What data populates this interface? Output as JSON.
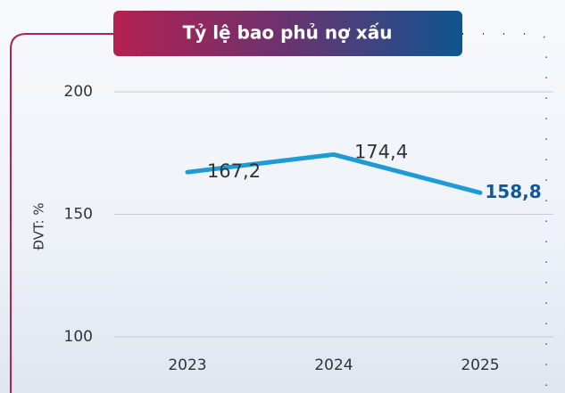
{
  "chart_data": {
    "type": "line",
    "title": "Tỷ lệ bao phủ nợ xấu",
    "y_label": "ĐVT: %",
    "categories": [
      "2023",
      "2024",
      "2025"
    ],
    "values": [
      167.2,
      174.4,
      158.8
    ],
    "value_labels": [
      "167,2",
      "174,4",
      "158,8"
    ],
    "color": "#1e9bd7",
    "ylim": [
      100,
      200
    ],
    "yticks": [
      100,
      150,
      200
    ],
    "grid": true
  }
}
